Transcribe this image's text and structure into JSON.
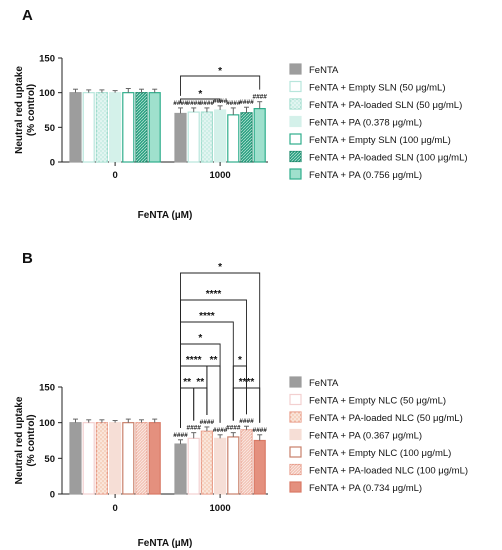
{
  "chart_data": [
    {
      "panel": "A",
      "type": "bar",
      "ylabel": "Neutral red uptake\n(% control)",
      "xlabel": "FeNTA (µM)",
      "ylim": [
        0,
        150
      ],
      "yticks": [
        0,
        50,
        100,
        150
      ],
      "categories": [
        "0",
        "1000"
      ],
      "legend_position": "right",
      "series": [
        {
          "name": "FeNTA",
          "values": [
            100,
            70
          ],
          "errors": [
            5,
            8
          ],
          "color": "#9d9d9d",
          "pattern": "solid",
          "edge": "#9d9d9d"
        },
        {
          "name": "FeNTA + Empty SLN (50 μg/mL)",
          "values": [
            100,
            72
          ],
          "errors": [
            4,
            6
          ],
          "color": "#ffffff",
          "pattern": "solid",
          "edge": "#b8e6dc"
        },
        {
          "name": "FeNTA + PA-loaded SLN (50 μg/mL)",
          "values": [
            100,
            72
          ],
          "errors": [
            4,
            6
          ],
          "color": "#cdeee6",
          "pattern": "dots",
          "edge": "#9fdccd"
        },
        {
          "name": "FeNTA + PA (0.378 μg/mL)",
          "values": [
            100,
            75
          ],
          "errors": [
            3,
            6
          ],
          "color": "#d4f1ea",
          "pattern": "solid",
          "edge": "#d4f1ea"
        },
        {
          "name": "FeNTA + Empty SLN (100 μg/mL)",
          "values": [
            100,
            68
          ],
          "errors": [
            6,
            10
          ],
          "color": "#ffffff",
          "pattern": "solid",
          "edge": "#2fae8c"
        },
        {
          "name": "FeNTA + PA-loaded SLN (100 μg/mL)",
          "values": [
            100,
            71
          ],
          "errors": [
            5,
            8
          ],
          "color": "#2ea383",
          "pattern": "dense",
          "edge": "#1e8b6d"
        },
        {
          "name": "FeNTA + PA (0.756 μg/mL)",
          "values": [
            100,
            77
          ],
          "errors": [
            5,
            10
          ],
          "color": "#9fe0cd",
          "pattern": "solid",
          "edge": "#2fae8c"
        }
      ],
      "hash_marks": [
        "####",
        "####",
        "####",
        "####",
        "####",
        "####",
        "####"
      ],
      "significance": [
        {
          "from": 0,
          "to": 6,
          "label": "*"
        },
        {
          "from": 0,
          "to": 3,
          "label": "*"
        }
      ]
    },
    {
      "panel": "B",
      "type": "bar",
      "ylabel": "Neutral red uptake\n(% control)",
      "xlabel": "FeNTA (µM)",
      "ylim": [
        0,
        150
      ],
      "yticks": [
        0,
        50,
        100,
        150
      ],
      "categories": [
        "0",
        "1000"
      ],
      "legend_position": "right",
      "series": [
        {
          "name": "FeNTA",
          "values": [
            100,
            70
          ],
          "errors": [
            5,
            6
          ],
          "color": "#9d9d9d",
          "pattern": "solid",
          "edge": "#9d9d9d"
        },
        {
          "name": "FeNTA + Empty NLC (50 μg/mL)",
          "values": [
            100,
            78
          ],
          "errors": [
            4,
            8
          ],
          "color": "#ffffff",
          "pattern": "solid",
          "edge": "#f3d0d0"
        },
        {
          "name": "FeNTA + PA-loaded NLC (50 μg/mL)",
          "values": [
            100,
            88
          ],
          "errors": [
            4,
            6
          ],
          "color": "#f6d3c0",
          "pattern": "dots",
          "edge": "#e89c88"
        },
        {
          "name": "FeNTA + PA (0.367 μg/mL)",
          "values": [
            100,
            78
          ],
          "errors": [
            3,
            5
          ],
          "color": "#f6ded6",
          "pattern": "solid",
          "edge": "#f6ded6"
        },
        {
          "name": "FeNTA + Empty NLC (100 μg/mL)",
          "values": [
            100,
            80
          ],
          "errors": [
            5,
            6
          ],
          "color": "#ffffff",
          "pattern": "solid",
          "edge": "#c9806a"
        },
        {
          "name": "FeNTA + PA-loaded NLC (100 μg/mL)",
          "values": [
            100,
            90
          ],
          "errors": [
            4,
            5
          ],
          "color": "#f3c6b9",
          "pattern": "dense",
          "edge": "#e8a08f"
        },
        {
          "name": "FeNTA + PA (0.734 μg/mL)",
          "values": [
            100,
            75
          ],
          "errors": [
            5,
            8
          ],
          "color": "#e4907e",
          "pattern": "solid",
          "edge": "#d97a66"
        }
      ],
      "hash_marks": [
        "####",
        "####",
        "####",
        "####",
        "####",
        "####",
        "####"
      ],
      "significance": [
        {
          "from": 0,
          "to": 6,
          "label": "*"
        },
        {
          "from": 0,
          "to": 5,
          "label": "****"
        },
        {
          "from": 0,
          "to": 4,
          "label": "****"
        },
        {
          "from": 0,
          "to": 3,
          "label": "*"
        },
        {
          "from": 0,
          "to": 2,
          "label": "****"
        },
        {
          "from": 2,
          "to": 3,
          "label": "**"
        },
        {
          "from": 4,
          "to": 5,
          "label": "*"
        },
        {
          "from": 0,
          "to": 1,
          "label": "**"
        },
        {
          "from": 1,
          "to": 2,
          "label": "**"
        },
        {
          "from": 4,
          "to": 6,
          "label": "****"
        }
      ]
    }
  ]
}
